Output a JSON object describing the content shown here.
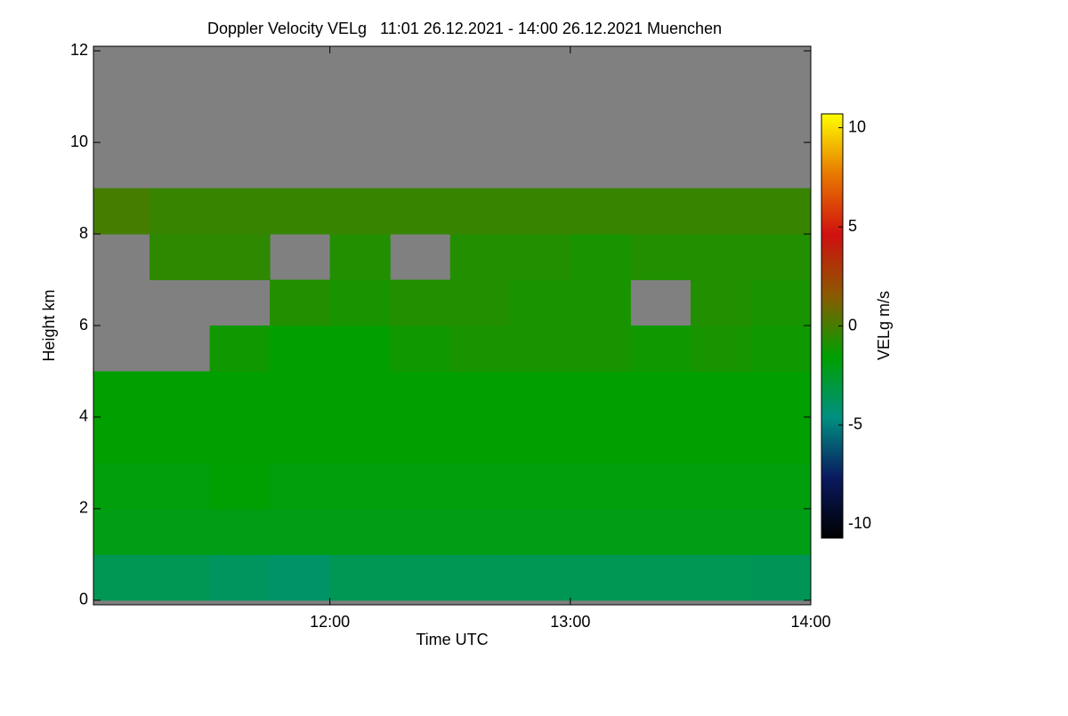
{
  "chart_data": {
    "type": "heatmap",
    "title": "Doppler Velocity VELg   11:01 26.12.2021 - 14:00 26.12.2021 Muenchen",
    "x_label": "Time UTC",
    "y_label": "Height km",
    "colorbar_label": "VELg m/s",
    "xlim": [
      11.0167,
      14.0
    ],
    "xticks": [
      {
        "value": 12,
        "label": "12:00"
      },
      {
        "value": 13,
        "label": "13:00"
      },
      {
        "value": 14,
        "label": "14:00"
      }
    ],
    "ylim": [
      -0.1,
      12.1
    ],
    "yticks": [
      0,
      2,
      4,
      6,
      8,
      10,
      12
    ],
    "xbins": [
      11.0167,
      11.25,
      11.5,
      11.75,
      12,
      12.25,
      12.5,
      12.75,
      13,
      13.25,
      13.5,
      13.75,
      14
    ],
    "ybins": [
      0,
      1,
      2,
      3,
      4,
      5,
      6,
      7,
      8,
      9,
      10,
      11,
      12
    ],
    "z": [
      [
        -3.5,
        -3.5,
        -3.8,
        -4.0,
        -3.5,
        -3.5,
        -3.5,
        -3.5,
        -3.5,
        -3.5,
        -3.5,
        -3.6
      ],
      [
        -2.0,
        -2.0,
        -2.0,
        -2.0,
        -2.0,
        -2.0,
        -2.0,
        -2.0,
        -2.0,
        -2.0,
        -2.0,
        -2.0
      ],
      [
        -1.8,
        -1.8,
        -1.6,
        -1.8,
        -1.8,
        -1.8,
        -1.8,
        -1.8,
        -1.8,
        -1.8,
        -1.8,
        -1.8
      ],
      [
        -1.5,
        -1.5,
        -1.5,
        -1.5,
        -1.5,
        -1.5,
        -1.5,
        -1.5,
        -1.5,
        -1.5,
        -1.5,
        -1.5
      ],
      [
        -1.5,
        -1.5,
        -1.5,
        -1.5,
        -1.5,
        -1.5,
        -1.5,
        -1.5,
        -1.5,
        -1.5,
        -1.5,
        -1.5
      ],
      [
        null,
        null,
        -1.2,
        -1.5,
        -1.5,
        -1.2,
        -1.0,
        -1.0,
        -1.0,
        -1.2,
        -1.0,
        -1.2
      ],
      [
        null,
        null,
        null,
        -0.8,
        -1.0,
        -0.8,
        -0.8,
        -1.0,
        -1.0,
        null,
        -0.8,
        -1.0
      ],
      [
        null,
        -0.5,
        -0.5,
        null,
        -0.8,
        null,
        -0.8,
        -0.8,
        -1.0,
        -0.8,
        -0.8,
        -0.8
      ],
      [
        0,
        -0.3,
        -0.3,
        -0.3,
        -0.3,
        -0.3,
        -0.3,
        -0.3,
        -0.3,
        -0.3,
        -0.3,
        -0.3
      ],
      [
        null,
        null,
        null,
        null,
        null,
        null,
        null,
        null,
        null,
        null,
        null,
        null
      ],
      [
        null,
        null,
        null,
        null,
        null,
        null,
        null,
        null,
        null,
        null,
        null,
        null
      ],
      [
        null,
        null,
        null,
        null,
        null,
        null,
        null,
        null,
        null,
        null,
        null,
        null
      ]
    ],
    "missing_color": "#808080",
    "clim": [
      -10.7,
      10.7
    ],
    "cticks": [
      -10,
      -5,
      0,
      5,
      10
    ],
    "colormap": [
      "#000000",
      "#0a1a60",
      "#009080",
      "#00a000",
      "#8a5a00",
      "#d01010",
      "#e87800",
      "#ffff00"
    ]
  }
}
